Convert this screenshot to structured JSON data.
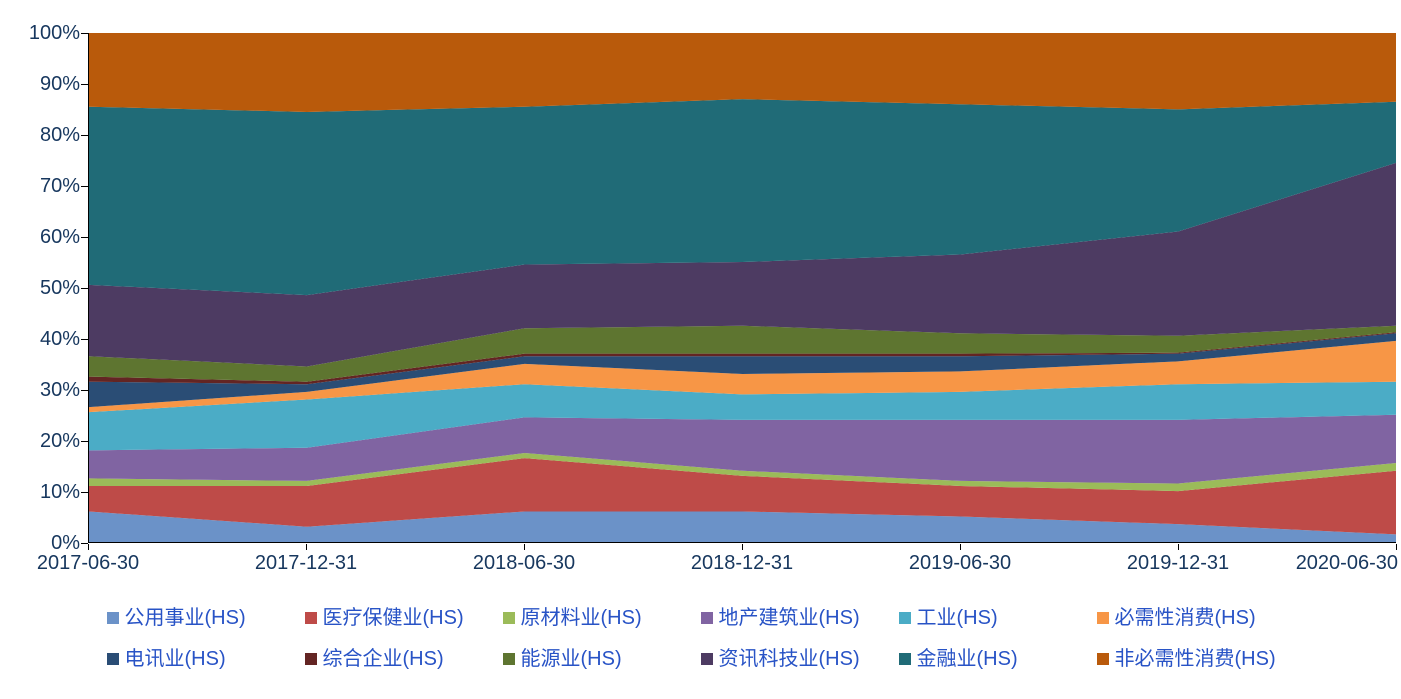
{
  "chart_data": {
    "type": "area",
    "stacked": true,
    "percent_stacked": true,
    "title": "",
    "xlabel": "",
    "ylabel": "",
    "ylim": [
      0,
      100
    ],
    "gridlines": false,
    "legend_position": "bottom",
    "x": [
      "2017-06-30",
      "2017-12-31",
      "2018-06-30",
      "2018-12-31",
      "2019-06-30",
      "2019-12-31",
      "2020-06-30"
    ],
    "y_ticks": [
      "0%",
      "10%",
      "20%",
      "30%",
      "40%",
      "50%",
      "60%",
      "70%",
      "80%",
      "90%",
      "100%"
    ],
    "series": [
      {
        "name": "公用事业(HS)",
        "color": "#6B92C8",
        "values": [
          6,
          3,
          6,
          6,
          5,
          3.5,
          1.5
        ]
      },
      {
        "name": "医疗保健业(HS)",
        "color": "#BE4B48",
        "values": [
          5,
          8,
          10.5,
          7,
          6,
          6.5,
          12.5
        ]
      },
      {
        "name": "原材料业(HS)",
        "color": "#9BBB59",
        "values": [
          1.5,
          1,
          1,
          1,
          1,
          1.5,
          1.5
        ]
      },
      {
        "name": "地产建筑业(HS)",
        "color": "#8064A2",
        "values": [
          5.5,
          6.5,
          7,
          10,
          12,
          12.5,
          9.5
        ]
      },
      {
        "name": "工业(HS)",
        "color": "#4BACC6",
        "values": [
          7.5,
          9.5,
          6.5,
          5,
          5.5,
          7,
          6.5
        ]
      },
      {
        "name": "必需性消费(HS)",
        "color": "#F79646",
        "values": [
          1,
          1.5,
          4,
          4,
          4,
          4.5,
          8
        ]
      },
      {
        "name": "电讯业(HS)",
        "color": "#2A4D75",
        "values": [
          5,
          1.5,
          1.5,
          3.5,
          3,
          1.5,
          1.5
        ]
      },
      {
        "name": "综合企业(HS)",
        "color": "#632523",
        "values": [
          1,
          0.5,
          0.5,
          0.5,
          0.5,
          0.2,
          0.2
        ]
      },
      {
        "name": "能源业(HS)",
        "color": "#5E7530",
        "values": [
          4,
          3,
          5,
          5.5,
          4,
          3.3,
          1.3
        ]
      },
      {
        "name": "资讯科技业(HS)",
        "color": "#4D3B62",
        "values": [
          14,
          14,
          12.5,
          12.5,
          15.5,
          20.5,
          32
        ]
      },
      {
        "name": "金融业(HS)",
        "color": "#206B77",
        "values": [
          35,
          36,
          31,
          32,
          29.5,
          24,
          12
        ]
      },
      {
        "name": "非必需性消费(HS)",
        "color": "#B95A0B",
        "values": [
          14.5,
          15.5,
          14.5,
          13,
          14,
          15,
          13.5
        ]
      }
    ],
    "colors": {
      "legend_text": "#2853C6",
      "axis_text": "#17375E",
      "axis_line": "#000000",
      "background": "#FFFFFF"
    }
  }
}
